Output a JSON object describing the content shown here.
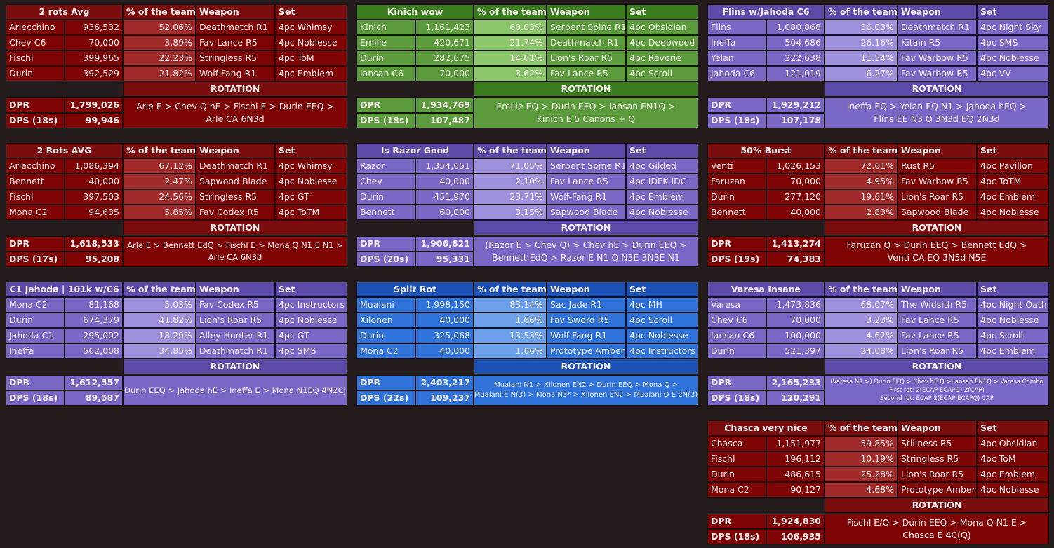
{
  "blocks": [
    {
      "theme": "red",
      "title": "2 rots Avg",
      "columns": [
        "% of the team",
        "Weapon",
        "Set"
      ],
      "rows": [
        [
          "Arlecchino",
          "936,532",
          "52.06%",
          "Deathmatch R1",
          "4pc Whimsy"
        ],
        [
          "Chev C6",
          "70,000",
          "3.89%",
          "Fav Lance R5",
          "4pc Noblesse"
        ],
        [
          "Fischl",
          "399,965",
          "22.23%",
          "Stringless R5",
          "4pc ToM"
        ],
        [
          "Durin",
          "392,529",
          "21.82%",
          "Wolf-Fang R1",
          "4pc Emblem"
        ]
      ],
      "rotation_label": "ROTATION",
      "dpr_label": "DPR",
      "dpr": "1,799,026",
      "dps_label": "DPS (18s)",
      "dps": "99,946",
      "rotation": [
        "Arle E > Chev Q hE > Fischl E > Durin EEQ >",
        "Arle CA 6N3d"
      ]
    },
    {
      "theme": "green",
      "title": "Kinich wow",
      "columns": [
        "% of the team",
        "Weapon",
        "Set"
      ],
      "rows": [
        [
          "Kinich",
          "1,161,423",
          "60.03%",
          "Serpent Spine R1",
          "4pc Obsidian"
        ],
        [
          "Emilie",
          "420,671",
          "21.74%",
          "Deathmatch R1",
          "4pc Deepwood"
        ],
        [
          "Durin",
          "282,675",
          "14.61%",
          "Lion's Roar R5",
          "4pc Reverie"
        ],
        [
          "Iansan C6",
          "70,000",
          "3.62%",
          "Fav Lance R5",
          "4pc Scroll"
        ]
      ],
      "rotation_label": "ROTATION",
      "dpr_label": "DPR",
      "dpr": "1,934,769",
      "dps_label": "DPS (18s)",
      "dps": "107,487",
      "rotation": [
        "Emilie EQ > Durin EEQ > Iansan EN1Q >",
        "Kinich E 5 Canons + Q"
      ]
    },
    {
      "theme": "purple",
      "title": "Flins w/Jahoda C6",
      "columns": [
        "% of the team",
        "Weapon",
        "Set"
      ],
      "rows": [
        [
          "Flins",
          "1,080,868",
          "56.03%",
          "Deathmatch R1",
          "4pc Night Sky"
        ],
        [
          "Ineffa",
          "504,686",
          "26.16%",
          "Kitain R5",
          "4pc SMS"
        ],
        [
          "Yelan",
          "222,638",
          "11.54%",
          "Fav Warbow R5",
          "4pc Noblesse"
        ],
        [
          "Jahoda C6",
          "121,019",
          "6.27%",
          "Fav Warbow R5",
          "4pc VV"
        ]
      ],
      "rotation_label": "ROTATION",
      "dpr_label": "DPR",
      "dpr": "1,929,212",
      "dps_label": "DPS (18s)",
      "dps": "107,178",
      "rotation": [
        "Ineffa EQ > Yelan EQ N1 > Jahoda hEQ >",
        "Flins EE N3 Q 3N3d EQ 2N3d"
      ]
    },
    {
      "theme": "red",
      "title": "2 Rots AVG",
      "columns": [
        "% of the team",
        "Weapon",
        "Set"
      ],
      "rows": [
        [
          "Arlecchino",
          "1,086,394",
          "67.12%",
          "Deathmatch R1",
          "4pc Whimsy"
        ],
        [
          "Bennett",
          "40,000",
          "2.47%",
          "Sapwood Blade",
          "4pc Noblesse"
        ],
        [
          "Fischl",
          "397,503",
          "24.56%",
          "Stringless R5",
          "4pc GT"
        ],
        [
          "Mona C2",
          "94,635",
          "5.85%",
          "Fav Codex R5",
          "4pc ToTM"
        ]
      ],
      "rotation_label": "ROTATION",
      "dpr_label": "DPR",
      "dpr": "1,618,533",
      "dps_label": "DPS (17s)",
      "dps": "95,208",
      "rotation": [
        "Arle E > Bennett EdQ > Fischl E > Mona Q N1 E N1 >",
        "Arle CA 6N3d"
      ]
    },
    {
      "theme": "purple",
      "title": "Is Razor Good",
      "columns": [
        "% of the team",
        "Weapon",
        "Set"
      ],
      "rows": [
        [
          "Razor",
          "1,354,651",
          "71.05%",
          "Serpent Spine R1",
          "4pc Gilded"
        ],
        [
          "Chev",
          "40,000",
          "2.10%",
          "Fav Lance R5",
          "4pc IDFK IDC"
        ],
        [
          "Durin",
          "451,970",
          "23.71%",
          "Wolf-Fang R1",
          "4pc Emblem"
        ],
        [
          "Bennett",
          "60,000",
          "3.15%",
          "Sapwood Blade",
          "4pc Noblesse"
        ]
      ],
      "rotation_label": "ROTATION",
      "dpr_label": "DPR",
      "dpr": "1,906,621",
      "dps_label": "DPS (20s)",
      "dps": "95,331",
      "rotation": [
        "(Razor E > Chev Q) > Chev hE > Durin EEQ >",
        "Bennett EdQ > Razor E N1 Q N3E 3N3E N1"
      ]
    },
    {
      "theme": "red",
      "title": "50% Burst",
      "columns": [
        "% of the team",
        "Weapon",
        "Set"
      ],
      "rows": [
        [
          "Venti",
          "1,026,153",
          "72.61%",
          "Rust R5",
          "4pc Pavilion"
        ],
        [
          "Faruzan",
          "70,000",
          "4.95%",
          "Fav Warbow R5",
          "4pc ToTM"
        ],
        [
          "Durin",
          "277,120",
          "19.61%",
          "Lion's Roar R5",
          "4pc Emblem"
        ],
        [
          "Bennett",
          "40,000",
          "2.83%",
          "Sapwood Blade",
          "4pc Noblesse"
        ]
      ],
      "rotation_label": "ROTATION",
      "dpr_label": "DPR",
      "dpr": "1,413,274",
      "dps_label": "DPS (19s)",
      "dps": "74,383",
      "rotation": [
        "Faruzan Q > Durin EEQ > Bennett EdQ >",
        "Venti CA EQ 3N5d N5E"
      ]
    },
    {
      "theme": "purple",
      "title": "C1 Jahoda | 101k w/C6",
      "columns": [
        "% of the team",
        "Weapon",
        "Set"
      ],
      "rows": [
        [
          "Mona C2",
          "81,168",
          "5.03%",
          "Fav Codex R5",
          "4pc Instructors"
        ],
        [
          "Durin",
          "674,379",
          "41.82%",
          "Lion's Roar R5",
          "4pc Noblesse"
        ],
        [
          "Jahoda C1",
          "295,002",
          "18.29%",
          "Alley Hunter R1",
          "4pc GT"
        ],
        [
          "Ineffa",
          "562,008",
          "34.85%",
          "Deathmatch R1",
          "4pc SMS"
        ]
      ],
      "rotation_label": "ROTATION",
      "dpr_label": "DPR",
      "dpr": "1,612,557",
      "dps_label": "DPS (18s)",
      "dps": "89,587",
      "rotation": [
        "Durin EEQ > Jahoda hE > Ineffa E > Mona N1EQ 4N2Cj"
      ]
    },
    {
      "theme": "blue",
      "title": "Split Rot",
      "columns": [
        "% of the team",
        "Weapon",
        "Set"
      ],
      "rows": [
        [
          "Mualani",
          "1,998,150",
          "83.14%",
          "Sac Jade R1",
          "4pc MH"
        ],
        [
          "Xilonen",
          "40,000",
          "1.66%",
          "Fav Sword R5",
          "4pc Scroll"
        ],
        [
          "Durin",
          "325,068",
          "13.53%",
          "Wolf-Fang R1",
          "4pc Noblesse"
        ],
        [
          "Mona C2",
          "40,000",
          "1.66%",
          "Prototype Amber",
          "4pc Instructors"
        ]
      ],
      "rotation_label": "ROTATION",
      "dpr_label": "DPR",
      "dpr": "2,403,217",
      "dps_label": "DPS (22s)",
      "dps": "109,237",
      "rotation": [
        "Mualani N1 > Xilonen EN2 > Durin EEQ > Mona Q >",
        "Mualani E N(3) > Mona N3* > Xilonen EN2 > Mualani Q E 2N(3)"
      ]
    },
    {
      "theme": "purple",
      "title": "Varesa Insane",
      "columns": [
        "% of the team",
        "Weapon",
        "Set"
      ],
      "rows": [
        [
          "Varesa",
          "1,473,836",
          "68.07%",
          "The Widsith R5",
          "4pc Night Oath"
        ],
        [
          "Chev C6",
          "70,000",
          "3.23%",
          "Fav Lance R5",
          "4pc Noblesse"
        ],
        [
          "Iansan C6",
          "100,000",
          "4.62%",
          "Fav Lance R5",
          "4pc Scroll"
        ],
        [
          "Durin",
          "521,397",
          "24.08%",
          "Lion's Roar R5",
          "4pc Emblem"
        ]
      ],
      "rotation_label": "ROTATION",
      "dpr_label": "DPR",
      "dpr": "2,165,233",
      "dps_label": "DPS (18s)",
      "dps": "120,291",
      "rotation": [
        "(Varesa N1 >) Durin EEQ > Chev hE Q > Iansan EN1Q > Varesa Combo",
        "First rot: 2(ECAP ECAPQ) 2(CAP)",
        "Second rot: ECAP 2(ECAP ECAPQ) CAP"
      ]
    },
    {
      "theme": "red",
      "title": "Chasca very nice",
      "columns": [
        "% of the team",
        "Weapon",
        "Set"
      ],
      "rows": [
        [
          "Chasca",
          "1,151,977",
          "59.85%",
          "Stillness R5",
          "4pc Obsidian"
        ],
        [
          "Fischl",
          "196,112",
          "10.19%",
          "Stringless R5",
          "4pc ToM"
        ],
        [
          "Durin",
          "486,615",
          "25.28%",
          "Lion's Roar R5",
          "4pc Emblem"
        ],
        [
          "Mona C2",
          "90,127",
          "4.68%",
          "Prototype Amber",
          "4pc Noblesse"
        ]
      ],
      "rotation_label": "ROTATION",
      "dpr_label": "DPR",
      "dpr": "1,924,830",
      "dps_label": "DPS (18s)",
      "dps": "106,935",
      "rotation": [
        "Fischl E/Q > Durin EEQ > Mona Q N1 E >",
        "Chasca E 4C(Q)"
      ]
    }
  ]
}
